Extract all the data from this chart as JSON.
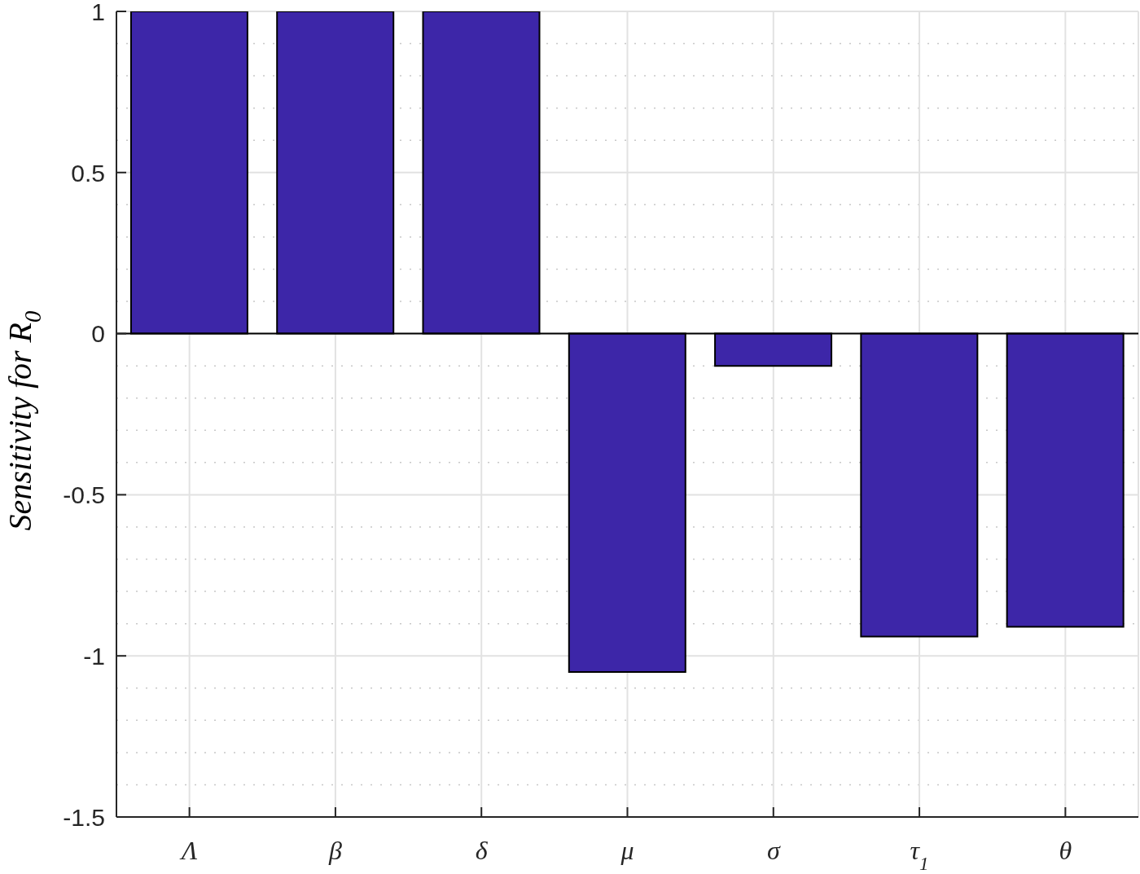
{
  "chart_data": {
    "type": "bar",
    "ylabel": "Sensitivity for R$_{0}$",
    "categories": [
      "Λ",
      "β",
      "δ",
      "μ",
      "σ",
      "τ$_{1}$",
      "θ"
    ],
    "values": [
      1,
      1,
      1,
      -1.05,
      -0.1,
      -0.94,
      -0.91
    ],
    "color": "#3d26a8",
    "ylim": [
      -1.5,
      1
    ],
    "yticks": [
      -1.5,
      -1,
      -0.5,
      0,
      0.5,
      1
    ],
    "grid": true,
    "ref_lines": [
      {
        "axis": "y",
        "value": 0,
        "color": "#000000"
      }
    ]
  }
}
